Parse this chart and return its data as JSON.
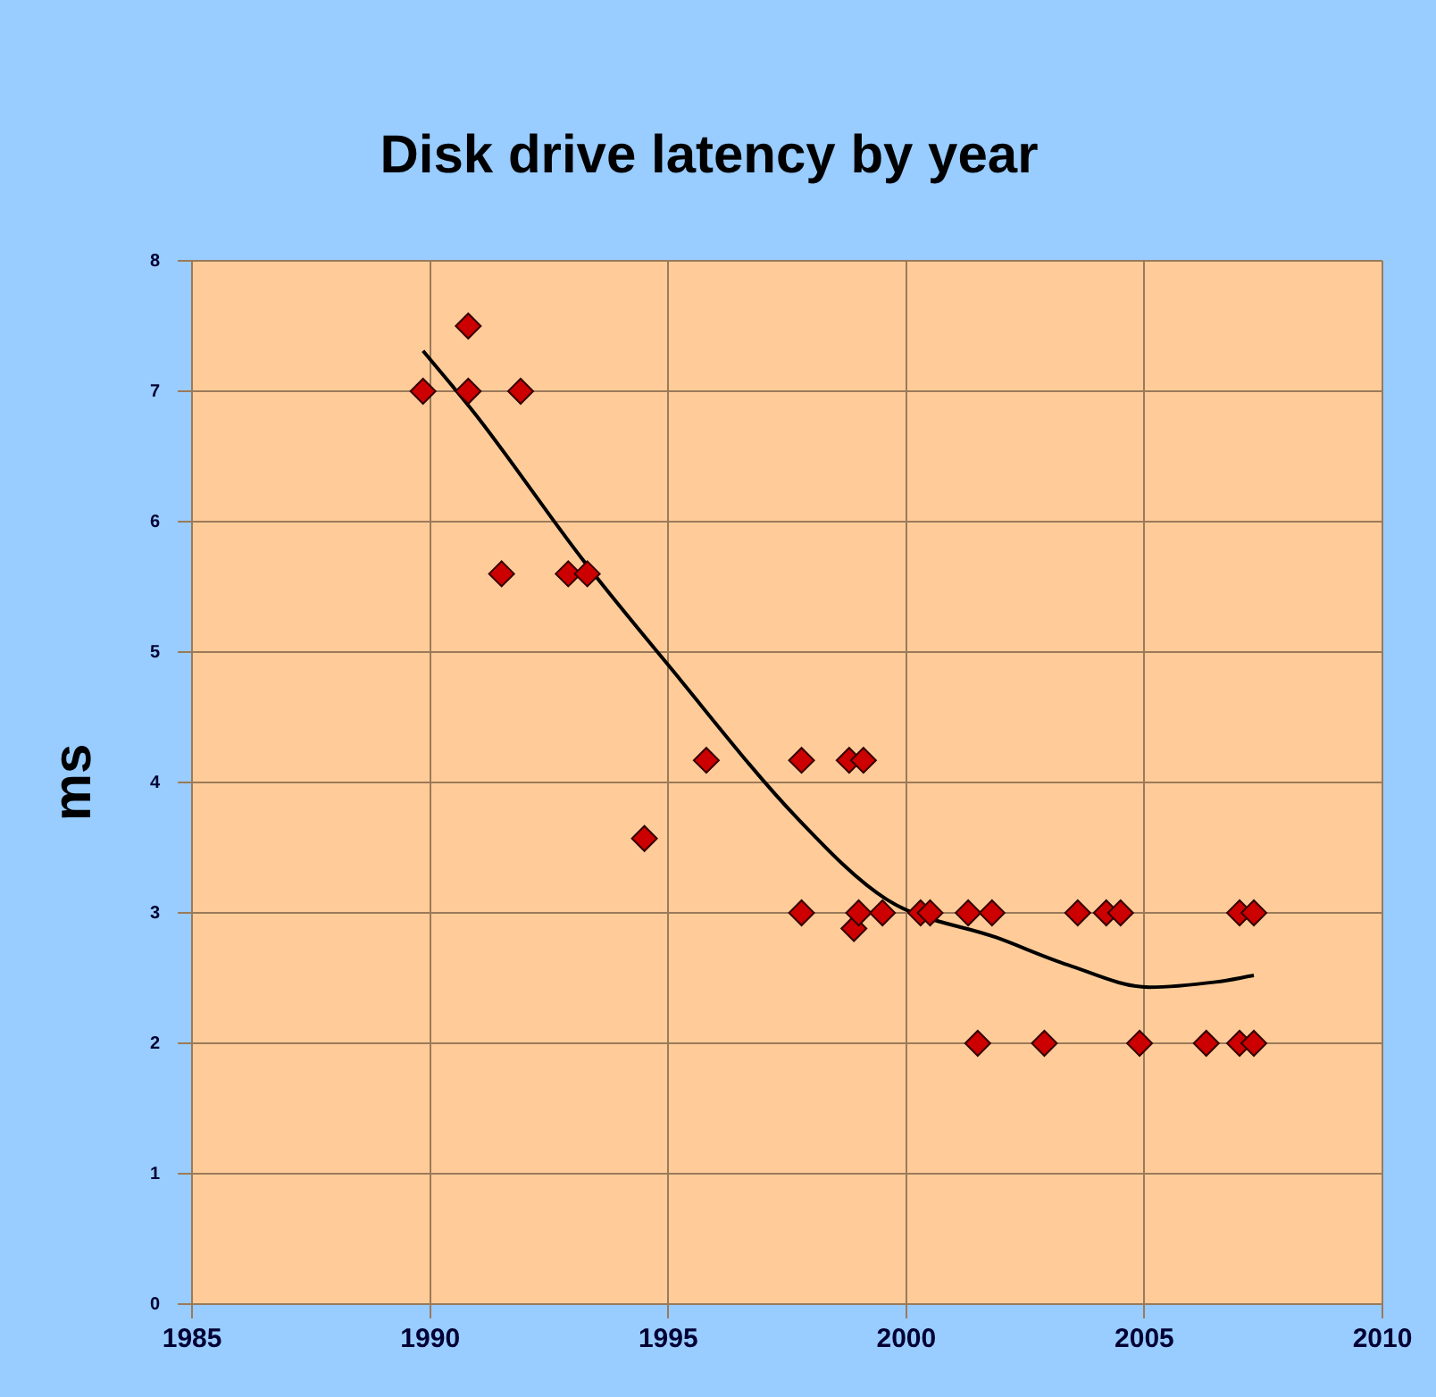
{
  "chart_data": {
    "type": "scatter",
    "title": "Disk drive latency by year",
    "ylabel": "ms",
    "xlim": [
      1985,
      2010
    ],
    "xticks": [
      1985,
      1990,
      1995,
      2000,
      2005,
      2010
    ],
    "ylim": [
      0,
      8
    ],
    "yticks": [
      0,
      1,
      2,
      3,
      4,
      5,
      6,
      7,
      8
    ],
    "grid": true,
    "legend": false,
    "marker": "diamond",
    "series": [
      {
        "color": "#cc0000",
        "x": [
          1989.85,
          1990.8,
          1990.8,
          1991.9,
          1991.5,
          1992.9,
          1993.3,
          1994.5,
          1995.8,
          1997.8,
          1998.8,
          1999.1,
          1997.8,
          1998.9,
          1999.0,
          1999.5,
          2000.3,
          2000.5,
          2001.3,
          2001.8,
          2003.6,
          2004.2,
          2004.5,
          2007.0,
          2007.3,
          2001.5,
          2002.9,
          2004.9,
          2006.3,
          2007.0,
          2007.3
        ],
        "values": [
          7,
          7.5,
          7,
          7,
          5.6,
          5.6,
          5.6,
          3.57,
          4.17,
          4.17,
          4.17,
          4.17,
          3,
          2.88,
          3,
          3,
          3,
          3,
          3,
          3,
          3,
          3,
          3,
          3,
          3,
          2,
          2,
          2,
          2,
          2,
          2
        ]
      },
      {
        "type": "line",
        "color": "#000000",
        "marker": "none",
        "x": [
          1989.85,
          1991,
          1993.2,
          1995,
          1997.7,
          1999.6,
          2001.9,
          2003.4,
          2005.1,
          2006.5,
          2007.3
        ],
        "values": [
          7.31,
          6.8,
          5.71,
          4.9,
          3.73,
          3.1,
          2.81,
          2.6,
          2.43,
          2.47,
          2.52
        ]
      }
    ]
  }
}
